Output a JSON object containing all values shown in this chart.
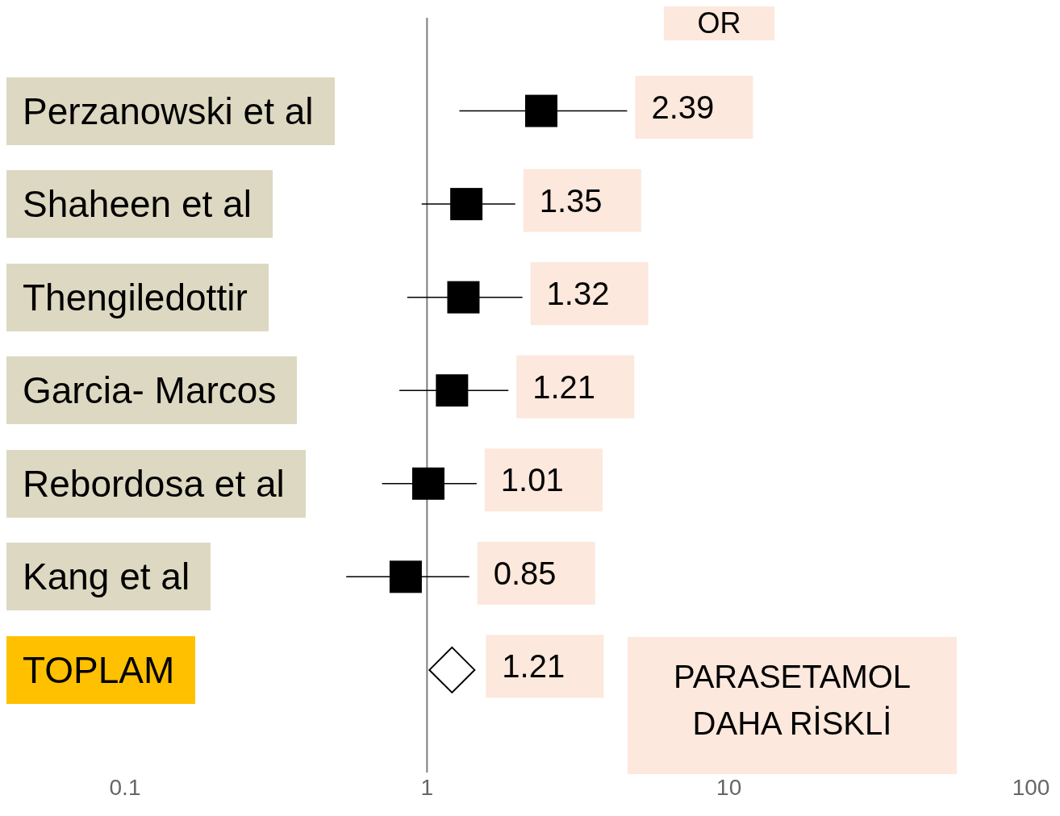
{
  "chart_data": {
    "type": "scatter",
    "orientation": "horizontal",
    "log": "x",
    "data_labels": true,
    "categories": [
      "Perzanowski et al",
      "Shaheen et al",
      "Thengiledottir",
      "Garcia- Marcos",
      "Rebordosa et al",
      "Kang et al",
      "TOPLAM"
    ],
    "xlim": [
      0.1,
      100
    ],
    "xticks": [
      0.1,
      1,
      10,
      100
    ],
    "ref_lines": [
      {
        "axis": "x",
        "value": 1,
        "color": "#7f7f7f"
      }
    ],
    "annotations": [
      "OR",
      "PARASETAMOL DAHA RİSKLİ"
    ],
    "series": [
      {
        "color": "#000000",
        "marker": "square",
        "values": [
          2.39,
          1.35,
          1.32,
          1.21,
          1.01,
          0.85,
          null
        ],
        "errors": [
          [
            1.28,
            4.6
          ],
          [
            0.96,
            1.96
          ],
          [
            0.86,
            2.07
          ],
          [
            0.81,
            1.86
          ],
          [
            0.71,
            1.46
          ],
          [
            0.54,
            1.38
          ],
          null
        ]
      },
      {
        "color": "#000000",
        "marker": "diamond",
        "values": [
          null,
          null,
          null,
          null,
          null,
          null,
          1.21
        ]
      }
    ]
  }
}
